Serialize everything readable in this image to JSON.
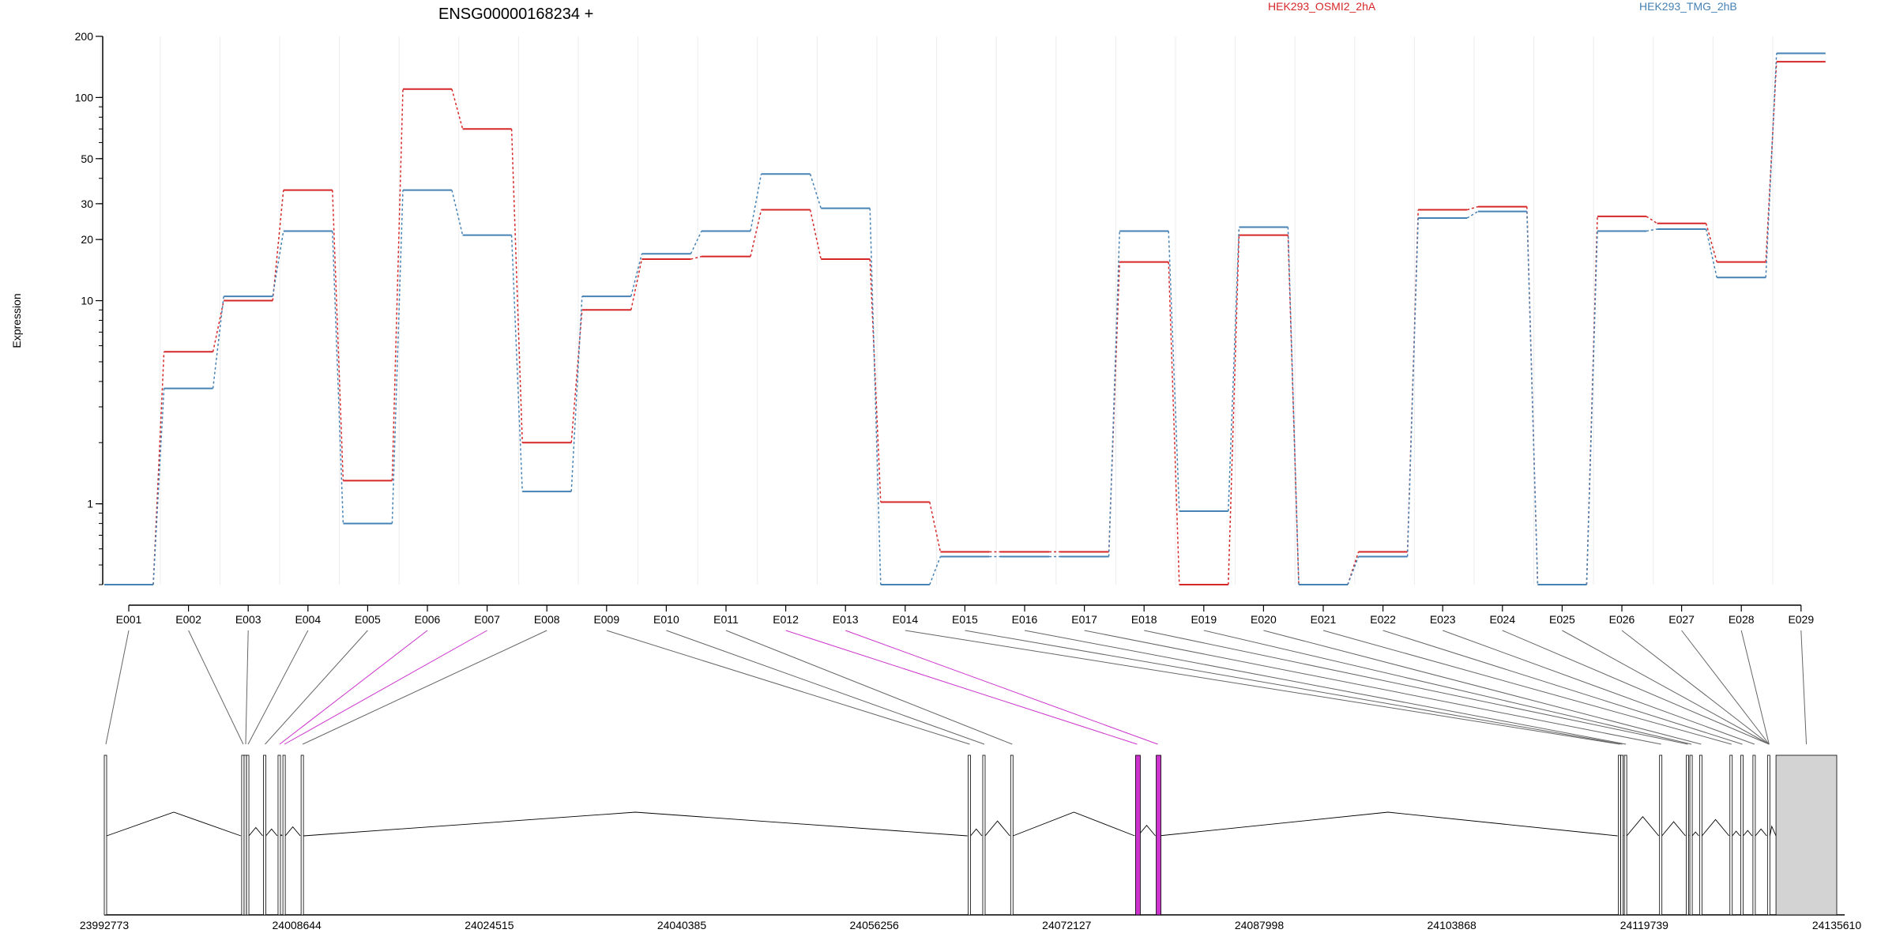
{
  "chart_data": {
    "type": "line",
    "title": "ENSG00000168234 +",
    "ylabel": "Expression",
    "yscale": "log",
    "ylim": [
      0.4,
      200
    ],
    "yticks": [
      "1",
      "10",
      "20",
      "30",
      "50",
      "100",
      "200"
    ],
    "grid": true,
    "legend_position": "top-right",
    "categories": [
      "E001",
      "E002",
      "E003",
      "E004",
      "E005",
      "E006",
      "E007",
      "E008",
      "E009",
      "E010",
      "E011",
      "E012",
      "E013",
      "E014",
      "E015",
      "E016",
      "E017",
      "E018",
      "E019",
      "E020",
      "E021",
      "E022",
      "E023",
      "E024",
      "E025",
      "E026",
      "E027",
      "E028",
      "E029"
    ],
    "series": [
      {
        "name": "HEK293_OSMI2_2hA",
        "color": "#d62728",
        "values": [
          0.4,
          5.6,
          10.0,
          35.0,
          1.3,
          110.0,
          70.0,
          2.0,
          9.0,
          16.0,
          16.5,
          28.0,
          16.0,
          1.02,
          0.58,
          0.58,
          0.58,
          15.5,
          0.4,
          21.0,
          0.4,
          0.58,
          28.0,
          29.0,
          0.4,
          26.0,
          24.0,
          15.5,
          150.0
        ]
      },
      {
        "name": "HEK293_TMG_2hB",
        "color": "#4682b4",
        "values": [
          0.4,
          3.7,
          10.5,
          22.0,
          0.8,
          35.0,
          21.0,
          1.15,
          10.5,
          17.0,
          22.0,
          42.0,
          28.5,
          0.4,
          0.55,
          0.55,
          0.55,
          22.0,
          0.92,
          23.0,
          0.4,
          0.55,
          25.5,
          27.5,
          0.4,
          22.0,
          22.5,
          13.0,
          165.0
        ]
      }
    ],
    "gene_model": {
      "coordinate_labels": [
        "23992773",
        "24008644",
        "24024515",
        "24040385",
        "24056256",
        "24072127",
        "24087998",
        "24103868",
        "24119739",
        "24135610"
      ],
      "exon_positions": [
        23992773,
        24004100,
        24004300,
        24004500,
        24005900,
        24007100,
        24007500,
        24009000,
        24064000,
        24065200,
        24067500,
        24077800,
        24079500,
        24117600,
        24117800,
        24118100,
        24121000,
        24123200,
        24123500,
        24124300,
        24126800,
        24127700,
        24128700,
        24129900
      ],
      "highlighted_exons": [
        "E006",
        "E007",
        "E012",
        "E013"
      ],
      "highlight_color": "#cc33cc"
    }
  }
}
